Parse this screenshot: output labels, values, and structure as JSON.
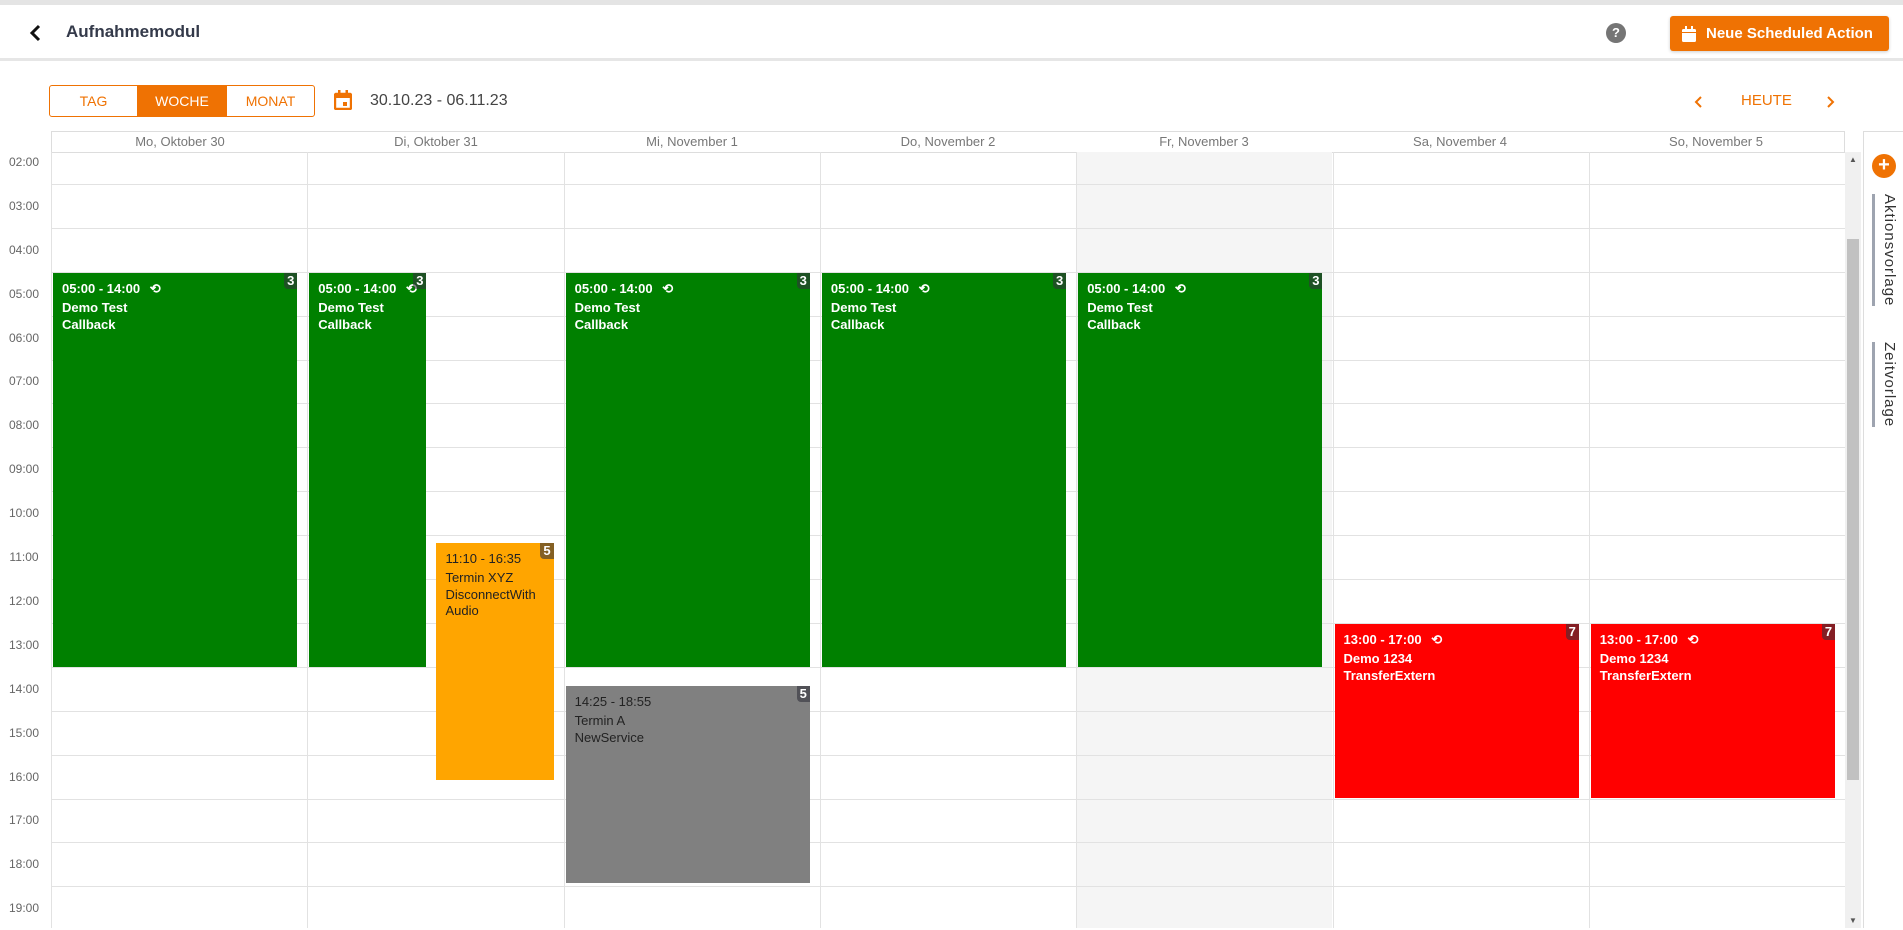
{
  "header": {
    "title": "Aufnahmemodul",
    "help": "?",
    "new_action_label": "Neue Scheduled Action"
  },
  "toolbar": {
    "views": [
      "TAG",
      "WOCHE",
      "MONAT"
    ],
    "active_view": "WOCHE",
    "date_range": "30.10.23 - 06.11.23",
    "today_label": "HEUTE"
  },
  "colors": {
    "accent": "#ef7203",
    "green": "#008000",
    "orange": "#ffa500",
    "gray": "#808080",
    "red": "#ff0000",
    "highlight_day_bg": "#f5f5f5"
  },
  "days": [
    "Mo, Oktober 30",
    "Di, Oktober 31",
    "Mi, November 1",
    "Do, November 2",
    "Fr, November 3",
    "Sa, November 4",
    "So, November 5"
  ],
  "highlighted_day": 4,
  "hours": [
    "02:00",
    "03:00",
    "04:00",
    "05:00",
    "06:00",
    "07:00",
    "08:00",
    "09:00",
    "10:00",
    "11:00",
    "12:00",
    "13:00",
    "14:00",
    "15:00",
    "16:00",
    "17:00",
    "18:00",
    "19:00"
  ],
  "events": [
    {
      "day": 0,
      "start": "05:00",
      "end": "14:00",
      "time": "05:00 - 14:00",
      "title": "Demo Test",
      "type": "Callback",
      "count": "3",
      "recurring": true,
      "color": "#008000",
      "text": "#ffffff"
    },
    {
      "day": 1,
      "start": "05:00",
      "end": "14:00",
      "time": "05:00 - 14:00",
      "title": "Demo Test",
      "type": "Callback",
      "count": "3",
      "recurring": true,
      "color": "#008000",
      "text": "#ffffff"
    },
    {
      "day": 1,
      "start": "11:10",
      "end": "16:35",
      "time": "11:10 - 16:35",
      "title": "Termin XYZ",
      "type": "DisconnectWith Audio",
      "count": "5",
      "recurring": false,
      "color": "#ffa500",
      "text": "#222222"
    },
    {
      "day": 2,
      "start": "05:00",
      "end": "14:00",
      "time": "05:00 - 14:00",
      "title": "Demo Test",
      "type": "Callback",
      "count": "3",
      "recurring": true,
      "color": "#008000",
      "text": "#ffffff"
    },
    {
      "day": 2,
      "start": "14:25",
      "end": "18:55",
      "time": "14:25 - 18:55",
      "title": "Termin A",
      "type": "NewService",
      "count": "5",
      "recurring": false,
      "color": "#808080",
      "text": "#222222"
    },
    {
      "day": 3,
      "start": "05:00",
      "end": "14:00",
      "time": "05:00 - 14:00",
      "title": "Demo Test",
      "type": "Callback",
      "count": "3",
      "recurring": true,
      "color": "#008000",
      "text": "#ffffff"
    },
    {
      "day": 4,
      "start": "05:00",
      "end": "14:00",
      "time": "05:00 - 14:00",
      "title": "Demo Test",
      "type": "Callback",
      "count": "3",
      "recurring": true,
      "color": "#008000",
      "text": "#ffffff"
    },
    {
      "day": 5,
      "start": "13:00",
      "end": "17:00",
      "time": "13:00 - 17:00",
      "title": "Demo 1234",
      "type": "TransferExtern",
      "count": "7",
      "recurring": true,
      "color": "#ff0000",
      "text": "#ffffff"
    },
    {
      "day": 6,
      "start": "13:00",
      "end": "17:00",
      "time": "13:00 - 17:00",
      "title": "Demo 1234",
      "type": "TransferExtern",
      "count": "7",
      "recurring": true,
      "color": "#ff0000",
      "text": "#ffffff"
    }
  ],
  "sidebar": {
    "tabs": [
      "Aktionsvorlage",
      "Zeitvorlage"
    ]
  }
}
